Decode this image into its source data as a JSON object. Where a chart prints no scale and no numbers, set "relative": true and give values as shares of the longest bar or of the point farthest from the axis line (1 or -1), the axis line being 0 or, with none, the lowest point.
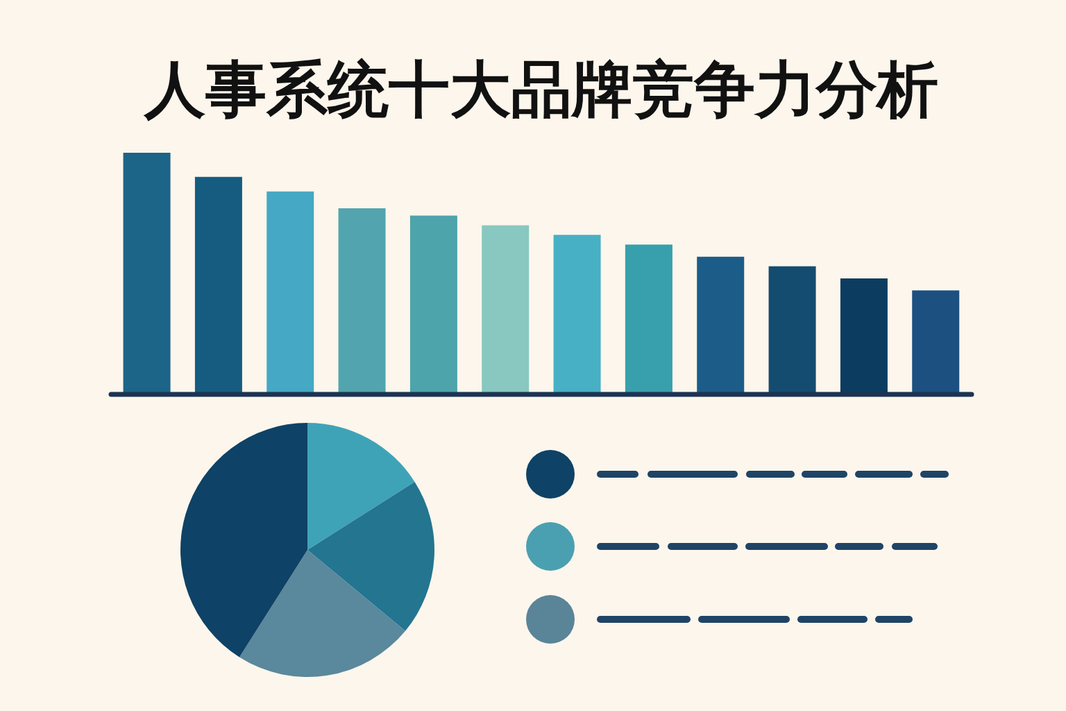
{
  "chart_data": [
    {
      "type": "bar",
      "title": "人事系统十大品牌竞争力分析",
      "relative": true,
      "categories": [
        null,
        null,
        null,
        null,
        null,
        null,
        null,
        null,
        null,
        null,
        null,
        null
      ],
      "values": [
        1,
        0.9,
        0.84,
        0.77,
        0.74,
        0.7,
        0.66,
        0.62,
        0.57,
        0.53,
        0.48,
        0.43
      ],
      "colors": [
        "#1c6488",
        "#155c80",
        "#45a8c4",
        "#52a5ae",
        "#4da4aa",
        "#88c8c0",
        "#48b0c4",
        "#38a0ac",
        "#1c5c88",
        "#144c70",
        "#0c3c60",
        "#1c5080"
      ],
      "grid": false,
      "legend": false
    },
    {
      "type": "pie",
      "categories": [
        null,
        null,
        null,
        null
      ],
      "values": [
        16,
        20,
        23,
        41
      ],
      "colors": [
        "#3fa3b8",
        "#237590",
        "#5a889c",
        "#0e4266"
      ],
      "legend": false
    }
  ]
}
